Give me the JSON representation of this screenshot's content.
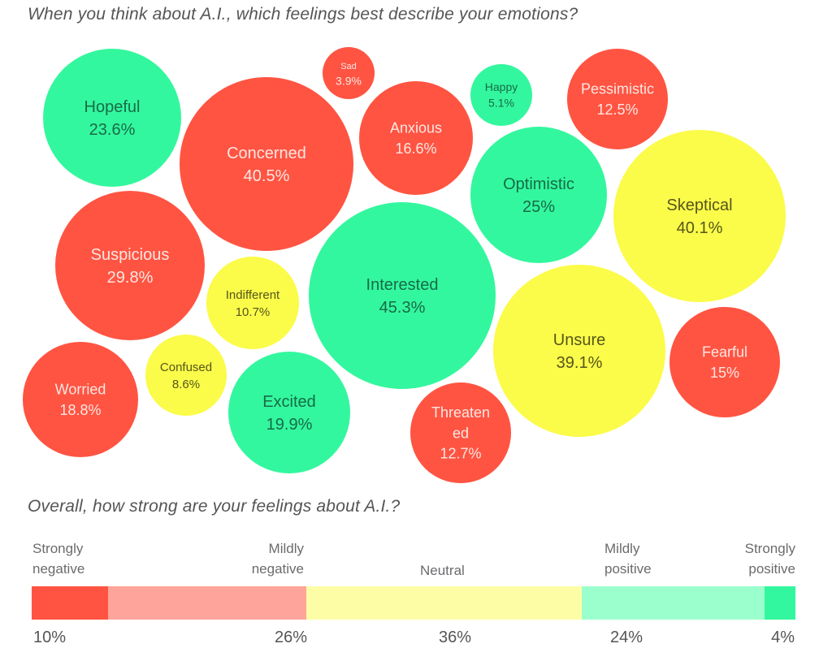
{
  "chart_data": [
    {
      "type": "bubble",
      "title": "When you think about A.I., which feelings best describe your emotions?",
      "value_unit": "%",
      "sentiment_colors": {
        "negative": "#ff5442",
        "neutral": "#fbfb4a",
        "positive": "#33f79e"
      },
      "text_colors": {
        "negative": "#fde6e2",
        "neutral": "#55561a",
        "positive": "#176b48"
      },
      "bubbles": [
        {
          "label": "Hopeful",
          "value": 23.6,
          "display": "23.6%",
          "sentiment": "positive"
        },
        {
          "label": "Concerned",
          "value": 40.5,
          "display": "40.5%",
          "sentiment": "negative"
        },
        {
          "label": "Sad",
          "value": 3.9,
          "display": "3.9%",
          "sentiment": "negative"
        },
        {
          "label": "Anxious",
          "value": 16.6,
          "display": "16.6%",
          "sentiment": "negative"
        },
        {
          "label": "Happy",
          "value": 5.1,
          "display": "5.1%",
          "sentiment": "positive"
        },
        {
          "label": "Pessimistic",
          "value": 12.5,
          "display": "12.5%",
          "sentiment": "negative"
        },
        {
          "label": "Optimistic",
          "value": 25,
          "display": "25%",
          "sentiment": "positive"
        },
        {
          "label": "Skeptical",
          "value": 40.1,
          "display": "40.1%",
          "sentiment": "neutral"
        },
        {
          "label": "Suspicious",
          "value": 29.8,
          "display": "29.8%",
          "sentiment": "negative"
        },
        {
          "label": "Indifferent",
          "value": 10.7,
          "display": "10.7%",
          "sentiment": "neutral"
        },
        {
          "label": "Interested",
          "value": 45.3,
          "display": "45.3%",
          "sentiment": "positive"
        },
        {
          "label": "Unsure",
          "value": 39.1,
          "display": "39.1%",
          "sentiment": "neutral"
        },
        {
          "label": "Fearful",
          "value": 15,
          "display": "15%",
          "sentiment": "negative"
        },
        {
          "label": "Worried",
          "value": 18.8,
          "display": "18.8%",
          "sentiment": "negative"
        },
        {
          "label": "Confused",
          "value": 8.6,
          "display": "8.6%",
          "sentiment": "neutral"
        },
        {
          "label": "Excited",
          "value": 19.9,
          "display": "19.9%",
          "sentiment": "positive"
        },
        {
          "label": "Threaten ed",
          "value": 12.7,
          "display": "12.7%",
          "sentiment": "negative"
        }
      ]
    },
    {
      "type": "stacked-bar",
      "title": "Overall, how strong are your feelings about A.I.?",
      "categories": [
        {
          "line1": "Strongly",
          "line2": "negative",
          "value": 10,
          "display": "10%",
          "color": "#ff5442"
        },
        {
          "line1": "Mildly",
          "line2": "negative",
          "value": 26,
          "display": "26%",
          "color": "#ffa49b"
        },
        {
          "line1": "",
          "line2": "Neutral",
          "value": 36,
          "display": "36%",
          "color": "#fdfda6"
        },
        {
          "line1": "Mildly",
          "line2": "positive",
          "value": 24,
          "display": "24%",
          "color": "#9bffcd"
        },
        {
          "line1": "Strongly",
          "line2": "positive",
          "value": 4,
          "display": "4%",
          "color": "#33f79e"
        }
      ]
    }
  ]
}
